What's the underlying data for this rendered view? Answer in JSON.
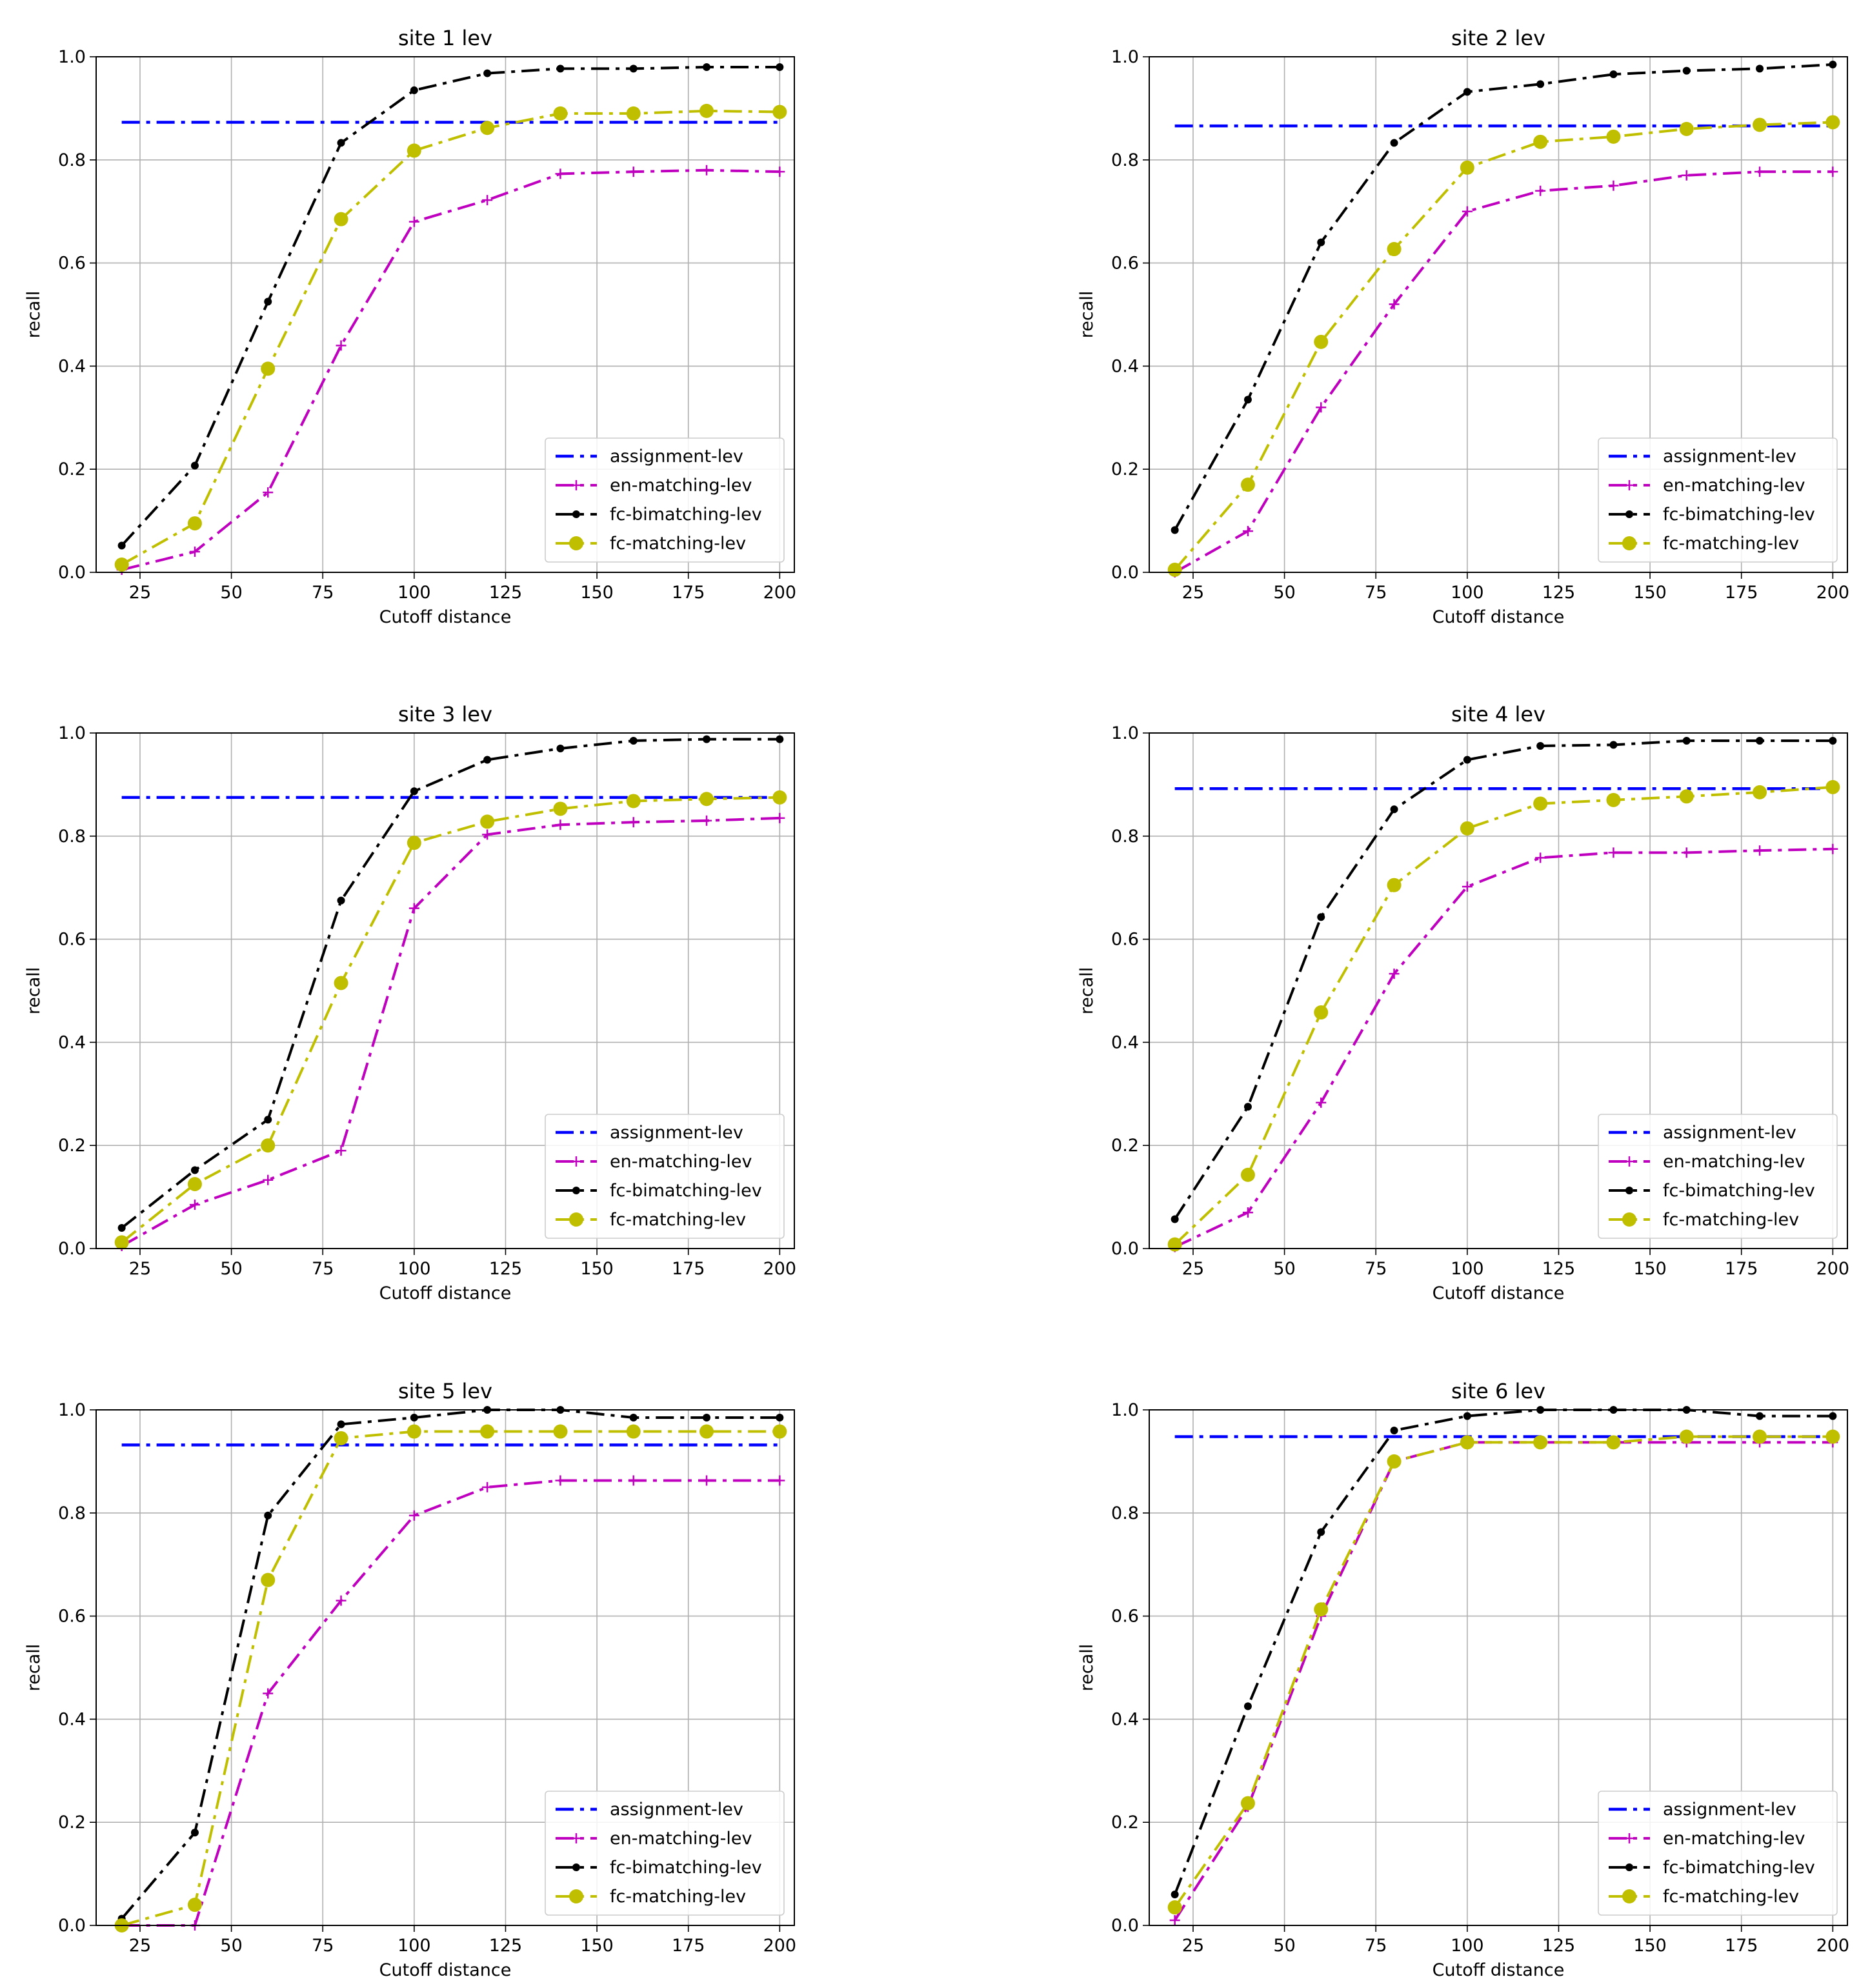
{
  "chart_data": [
    {
      "type": "line",
      "title": "site 1 lev",
      "xlabel": "Cutoff distance",
      "ylabel": "recall",
      "xlim": [
        13,
        204
      ],
      "ylim": [
        0,
        1.0
      ],
      "xticks": [
        25,
        50,
        75,
        100,
        125,
        150,
        175,
        200
      ],
      "yticks": [
        0.0,
        0.2,
        0.4,
        0.6,
        0.8,
        1.0
      ],
      "grid": true,
      "legend": "lower-right",
      "x": [
        20,
        40,
        60,
        80,
        100,
        120,
        140,
        160,
        180,
        200
      ],
      "series": [
        {
          "name": "assignment-lev",
          "color": "#0000ff",
          "marker": "none",
          "values": [
            0.873,
            0.873,
            0.873,
            0.873,
            0.873,
            0.873,
            0.873,
            0.873,
            0.873,
            0.873
          ]
        },
        {
          "name": "en-matching-lev",
          "color": "#bf00bf",
          "marker": "plus",
          "values": [
            0.005,
            0.04,
            0.155,
            0.44,
            0.68,
            0.722,
            0.773,
            0.777,
            0.78,
            0.777
          ]
        },
        {
          "name": "fc-bimatching-lev",
          "color": "#000000",
          "marker": "point",
          "values": [
            0.052,
            0.207,
            0.525,
            0.833,
            0.935,
            0.968,
            0.977,
            0.977,
            0.98,
            0.98
          ]
        },
        {
          "name": "fc-matching-lev",
          "color": "#bfbf00",
          "marker": "circle",
          "values": [
            0.015,
            0.095,
            0.395,
            0.685,
            0.818,
            0.862,
            0.89,
            0.89,
            0.895,
            0.893
          ]
        }
      ]
    },
    {
      "type": "line",
      "title": "site 2 lev",
      "xlabel": "Cutoff distance",
      "ylabel": "recall",
      "xlim": [
        13,
        204
      ],
      "ylim": [
        0,
        1.0
      ],
      "xticks": [
        25,
        50,
        75,
        100,
        125,
        150,
        175,
        200
      ],
      "yticks": [
        0.0,
        0.2,
        0.4,
        0.6,
        0.8,
        1.0
      ],
      "grid": true,
      "legend": "lower-right",
      "x": [
        20,
        40,
        60,
        80,
        100,
        120,
        140,
        160,
        180,
        200
      ],
      "series": [
        {
          "name": "assignment-lev",
          "color": "#0000ff",
          "marker": "none",
          "values": [
            0.866,
            0.866,
            0.866,
            0.866,
            0.866,
            0.866,
            0.866,
            0.866,
            0.866,
            0.866
          ]
        },
        {
          "name": "en-matching-lev",
          "color": "#bf00bf",
          "marker": "plus",
          "values": [
            0.0,
            0.08,
            0.32,
            0.52,
            0.7,
            0.74,
            0.75,
            0.77,
            0.777,
            0.777
          ]
        },
        {
          "name": "fc-bimatching-lev",
          "color": "#000000",
          "marker": "point",
          "values": [
            0.082,
            0.335,
            0.64,
            0.833,
            0.932,
            0.947,
            0.966,
            0.973,
            0.977,
            0.985
          ]
        },
        {
          "name": "fc-matching-lev",
          "color": "#bfbf00",
          "marker": "circle",
          "values": [
            0.005,
            0.17,
            0.447,
            0.627,
            0.785,
            0.835,
            0.845,
            0.86,
            0.868,
            0.873
          ]
        }
      ]
    },
    {
      "type": "line",
      "title": "site 3 lev",
      "xlabel": "Cutoff distance",
      "ylabel": "recall",
      "xlim": [
        13,
        204
      ],
      "ylim": [
        0,
        1.0
      ],
      "xticks": [
        25,
        50,
        75,
        100,
        125,
        150,
        175,
        200
      ],
      "yticks": [
        0.0,
        0.2,
        0.4,
        0.6,
        0.8,
        1.0
      ],
      "grid": true,
      "legend": "lower-right",
      "x": [
        20,
        40,
        60,
        80,
        100,
        120,
        140,
        160,
        180,
        200
      ],
      "series": [
        {
          "name": "assignment-lev",
          "color": "#0000ff",
          "marker": "none",
          "values": [
            0.875,
            0.875,
            0.875,
            0.875,
            0.875,
            0.875,
            0.875,
            0.875,
            0.875,
            0.875
          ]
        },
        {
          "name": "en-matching-lev",
          "color": "#bf00bf",
          "marker": "plus",
          "values": [
            0.005,
            0.085,
            0.133,
            0.19,
            0.66,
            0.803,
            0.822,
            0.827,
            0.83,
            0.835
          ]
        },
        {
          "name": "fc-bimatching-lev",
          "color": "#000000",
          "marker": "point",
          "values": [
            0.04,
            0.152,
            0.25,
            0.675,
            0.887,
            0.948,
            0.97,
            0.985,
            0.988,
            0.988
          ]
        },
        {
          "name": "fc-matching-lev",
          "color": "#bfbf00",
          "marker": "circle",
          "values": [
            0.012,
            0.125,
            0.2,
            0.515,
            0.787,
            0.828,
            0.853,
            0.868,
            0.872,
            0.875
          ]
        }
      ]
    },
    {
      "type": "line",
      "title": "site 4 lev",
      "xlabel": "Cutoff distance",
      "ylabel": "recall",
      "xlim": [
        13,
        204
      ],
      "ylim": [
        0,
        1.0
      ],
      "xticks": [
        25,
        50,
        75,
        100,
        125,
        150,
        175,
        200
      ],
      "yticks": [
        0.0,
        0.2,
        0.4,
        0.6,
        0.8,
        1.0
      ],
      "grid": true,
      "legend": "lower-right",
      "x": [
        20,
        40,
        60,
        80,
        100,
        120,
        140,
        160,
        180,
        200
      ],
      "series": [
        {
          "name": "assignment-lev",
          "color": "#0000ff",
          "marker": "none",
          "values": [
            0.892,
            0.892,
            0.892,
            0.892,
            0.892,
            0.892,
            0.892,
            0.892,
            0.892,
            0.892
          ]
        },
        {
          "name": "en-matching-lev",
          "color": "#bf00bf",
          "marker": "plus",
          "values": [
            0.003,
            0.07,
            0.283,
            0.533,
            0.702,
            0.758,
            0.768,
            0.768,
            0.772,
            0.775
          ]
        },
        {
          "name": "fc-bimatching-lev",
          "color": "#000000",
          "marker": "point",
          "values": [
            0.057,
            0.275,
            0.643,
            0.852,
            0.948,
            0.975,
            0.977,
            0.985,
            0.985,
            0.985
          ]
        },
        {
          "name": "fc-matching-lev",
          "color": "#bfbf00",
          "marker": "circle",
          "values": [
            0.008,
            0.143,
            0.458,
            0.705,
            0.815,
            0.863,
            0.87,
            0.877,
            0.885,
            0.895
          ]
        }
      ]
    },
    {
      "type": "line",
      "title": "site 5 lev",
      "xlabel": "Cutoff distance",
      "ylabel": "recall",
      "xlim": [
        13,
        204
      ],
      "ylim": [
        0,
        1.0
      ],
      "xticks": [
        25,
        50,
        75,
        100,
        125,
        150,
        175,
        200
      ],
      "yticks": [
        0.0,
        0.2,
        0.4,
        0.6,
        0.8,
        1.0
      ],
      "grid": true,
      "legend": "lower-right",
      "x": [
        20,
        40,
        60,
        80,
        100,
        120,
        140,
        160,
        180,
        200
      ],
      "series": [
        {
          "name": "assignment-lev",
          "color": "#0000ff",
          "marker": "none",
          "values": [
            0.932,
            0.932,
            0.932,
            0.932,
            0.932,
            0.932,
            0.932,
            0.932,
            0.932,
            0.932
          ]
        },
        {
          "name": "en-matching-lev",
          "color": "#bf00bf",
          "marker": "plus",
          "values": [
            0.0,
            0.0,
            0.45,
            0.63,
            0.795,
            0.85,
            0.863,
            0.863,
            0.863,
            0.863
          ]
        },
        {
          "name": "fc-bimatching-lev",
          "color": "#000000",
          "marker": "point",
          "values": [
            0.013,
            0.18,
            0.795,
            0.972,
            0.985,
            1.0,
            1.0,
            0.985,
            0.985,
            0.985
          ]
        },
        {
          "name": "fc-matching-lev",
          "color": "#bfbf00",
          "marker": "circle",
          "values": [
            0.0,
            0.04,
            0.67,
            0.945,
            0.958,
            0.958,
            0.958,
            0.958,
            0.958,
            0.958
          ]
        }
      ]
    },
    {
      "type": "line",
      "title": "site 6 lev",
      "xlabel": "Cutoff distance",
      "ylabel": "recall",
      "xlim": [
        13,
        204
      ],
      "ylim": [
        0,
        1.0
      ],
      "xticks": [
        25,
        50,
        75,
        100,
        125,
        150,
        175,
        200
      ],
      "yticks": [
        0.0,
        0.2,
        0.4,
        0.6,
        0.8,
        1.0
      ],
      "grid": true,
      "legend": "lower-right",
      "x": [
        20,
        40,
        60,
        80,
        100,
        120,
        140,
        160,
        180,
        200
      ],
      "series": [
        {
          "name": "assignment-lev",
          "color": "#0000ff",
          "marker": "none",
          "values": [
            0.948,
            0.948,
            0.948,
            0.948,
            0.948,
            0.948,
            0.948,
            0.948,
            0.948,
            0.948
          ]
        },
        {
          "name": "en-matching-lev",
          "color": "#bf00bf",
          "marker": "plus",
          "values": [
            0.01,
            0.23,
            0.6,
            0.9,
            0.937,
            0.937,
            0.937,
            0.937,
            0.937,
            0.937
          ]
        },
        {
          "name": "fc-bimatching-lev",
          "color": "#000000",
          "marker": "point",
          "values": [
            0.06,
            0.425,
            0.763,
            0.96,
            0.988,
            1.0,
            1.0,
            1.0,
            0.988,
            0.988
          ]
        },
        {
          "name": "fc-matching-lev",
          "color": "#bfbf00",
          "marker": "circle",
          "values": [
            0.035,
            0.237,
            0.613,
            0.9,
            0.937,
            0.937,
            0.937,
            0.948,
            0.948,
            0.948
          ]
        }
      ]
    }
  ]
}
